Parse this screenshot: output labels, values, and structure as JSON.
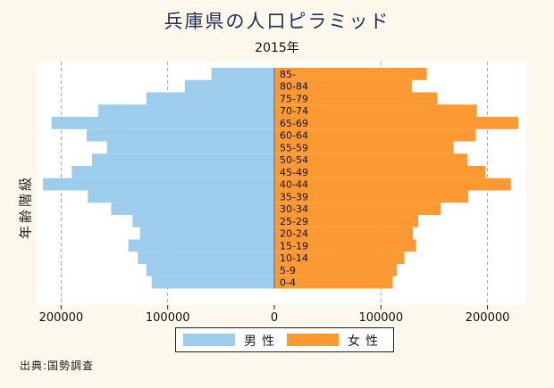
{
  "title": "兵庫県の人口ピラミッド",
  "subtitle": "2015年",
  "source": "出典:国勢調査",
  "colors": {
    "male": "#9dcdec",
    "female": "#fd9933",
    "grid": "#9a9a9a",
    "background": "#fdf8ec"
  },
  "chart_data": {
    "type": "bar",
    "orientation": "horizontal-pyramid",
    "title": "兵庫県の人口ピラミッド",
    "subtitle": "2015年",
    "ylabel": "年齢階級",
    "xlabel": "",
    "categories": [
      "0-4",
      "5-9",
      "10-14",
      "15-19",
      "20-24",
      "25-29",
      "30-34",
      "35-39",
      "40-44",
      "45-49",
      "50-54",
      "55-59",
      "60-64",
      "65-69",
      "70-74",
      "75-79",
      "80-84",
      "85-"
    ],
    "series": [
      {
        "name": "男性",
        "side": "left",
        "values": [
          115000,
          120000,
          128000,
          137000,
          126000,
          133000,
          153000,
          175000,
          217000,
          190000,
          171000,
          157000,
          176000,
          209000,
          165000,
          120000,
          84000,
          59000
        ]
      },
      {
        "name": "女性",
        "side": "right",
        "values": [
          111000,
          115000,
          122000,
          133000,
          130000,
          135000,
          156000,
          182000,
          222000,
          198000,
          181000,
          168000,
          189000,
          229000,
          190000,
          153000,
          129000,
          143000
        ]
      }
    ],
    "xlim": [
      -235000,
      235000
    ],
    "xticks": [
      {
        "value": -200000,
        "label": "200000"
      },
      {
        "value": -100000,
        "label": "100000"
      },
      {
        "value": 0,
        "label": "0"
      },
      {
        "value": 100000,
        "label": "100000"
      },
      {
        "value": 200000,
        "label": "200000"
      }
    ],
    "grid": true,
    "legend_position": "bottom-center"
  }
}
